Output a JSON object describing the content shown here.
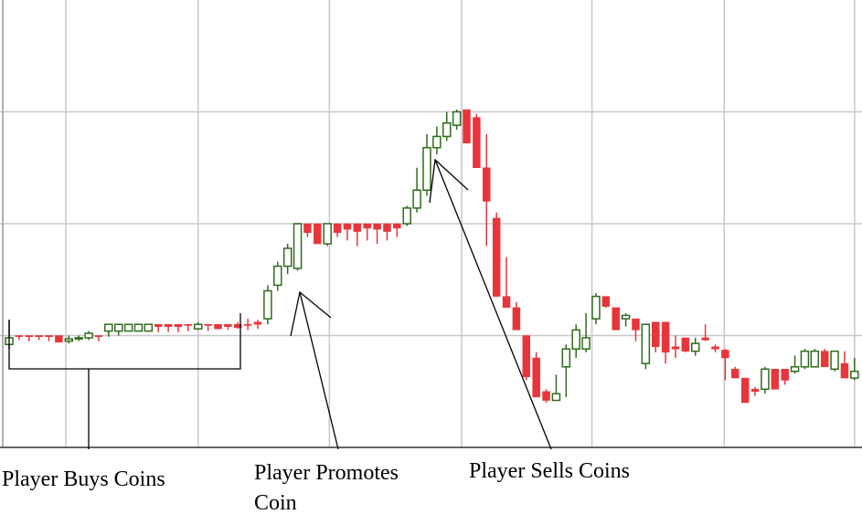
{
  "chart_data": {
    "type": "candlestick",
    "open": [
      0.92,
      1.0,
      1.0,
      1.0,
      1.0,
      1.0,
      0.95,
      0.97,
      0.98,
      1.0,
      1.04,
      1.04,
      1.04,
      1.04,
      1.04,
      1.1,
      1.1,
      1.1,
      1.1,
      1.06,
      1.1,
      1.1,
      1.1,
      1.1,
      1.1,
      1.12,
      1.15,
      1.45,
      1.62,
      1.6,
      2.0,
      2.0,
      1.82,
      2.0,
      2.0,
      2.0,
      2.0,
      2.0,
      2.0,
      2.0,
      2.0,
      2.14,
      2.3,
      2.68,
      2.78,
      2.88,
      3.02,
      2.95,
      2.5,
      2.05,
      1.35,
      1.25,
      1.0,
      0.8,
      0.5,
      0.42,
      0.72,
      0.88,
      0.88,
      1.15,
      1.35,
      1.25,
      1.15,
      1.15,
      0.75,
      1.12,
      1.12,
      0.9,
      0.98,
      0.86,
      0.98,
      0.9,
      0.87,
      0.7,
      0.62,
      0.52,
      0.52,
      0.7,
      0.7,
      0.68,
      0.72,
      0.72,
      0.86,
      0.7,
      0.75,
      0.62
    ],
    "high": [
      1.14,
      1.0,
      1.0,
      1.0,
      1.0,
      1.0,
      1.0,
      1.0,
      1.04,
      1.0,
      1.1,
      1.1,
      1.1,
      1.1,
      1.1,
      1.1,
      1.1,
      1.1,
      1.1,
      1.12,
      1.1,
      1.1,
      1.1,
      1.12,
      1.15,
      1.14,
      1.45,
      1.66,
      1.82,
      2.0,
      2.0,
      2.0,
      2.0,
      2.0,
      2.0,
      2.0,
      2.0,
      2.0,
      2.0,
      2.0,
      2.16,
      2.5,
      2.8,
      2.87,
      3.0,
      3.02,
      3.02,
      2.98,
      2.8,
      2.1,
      1.7,
      1.3,
      1.0,
      0.85,
      0.52,
      0.65,
      0.92,
      1.1,
      1.2,
      1.38,
      1.35,
      1.25,
      1.2,
      1.15,
      1.1,
      1.12,
      1.12,
      1.0,
      0.98,
      0.98,
      1.1,
      0.92,
      0.88,
      0.72,
      0.62,
      0.54,
      0.72,
      0.7,
      0.7,
      0.82,
      0.88,
      0.88,
      0.88,
      0.86,
      0.86,
      0.8
    ],
    "low": [
      0.88,
      0.96,
      0.95,
      0.96,
      0.95,
      0.94,
      0.93,
      0.95,
      0.96,
      0.95,
      0.99,
      1.0,
      1.04,
      1.04,
      1.04,
      1.03,
      1.03,
      1.03,
      1.04,
      1.05,
      1.04,
      1.06,
      1.05,
      1.06,
      1.05,
      1.06,
      1.1,
      1.4,
      1.55,
      1.58,
      1.88,
      1.82,
      1.8,
      1.88,
      1.85,
      1.8,
      1.85,
      1.82,
      1.85,
      1.88,
      1.98,
      2.1,
      2.25,
      2.62,
      2.74,
      2.84,
      2.72,
      2.5,
      1.8,
      1.35,
      1.25,
      1.05,
      0.6,
      0.45,
      0.4,
      0.42,
      0.45,
      0.8,
      0.85,
      1.1,
      1.25,
      1.05,
      1.08,
      0.95,
      0.7,
      0.85,
      0.75,
      0.8,
      0.85,
      0.82,
      0.95,
      0.85,
      0.6,
      0.62,
      0.4,
      0.46,
      0.48,
      0.52,
      0.56,
      0.66,
      0.7,
      0.72,
      0.72,
      0.68,
      0.62,
      0.6
    ],
    "close": [
      0.98,
      0.99,
      0.99,
      0.99,
      0.99,
      0.94,
      0.97,
      0.98,
      1.02,
      0.99,
      1.1,
      1.1,
      1.1,
      1.1,
      1.1,
      1.08,
      1.08,
      1.08,
      1.09,
      1.1,
      1.09,
      1.06,
      1.08,
      1.07,
      1.09,
      1.1,
      1.4,
      1.62,
      1.78,
      2.0,
      1.92,
      1.82,
      2.0,
      1.92,
      1.95,
      1.93,
      1.96,
      1.95,
      1.93,
      1.96,
      2.14,
      2.3,
      2.68,
      2.78,
      2.9,
      3.0,
      2.72,
      2.5,
      2.2,
      1.35,
      1.25,
      1.05,
      0.63,
      0.45,
      0.42,
      0.48,
      0.88,
      1.05,
      0.98,
      1.35,
      1.26,
      1.05,
      1.18,
      1.05,
      1.1,
      0.9,
      0.85,
      0.88,
      0.86,
      0.93,
      0.96,
      0.88,
      0.8,
      0.62,
      0.4,
      0.5,
      0.7,
      0.52,
      0.6,
      0.72,
      0.86,
      0.86,
      0.72,
      0.86,
      0.62,
      0.68
    ],
    "up_color": "#2f6b1c",
    "down_color": "#e8353b",
    "xlim": [
      -0.92,
      85.75
    ],
    "xticks": [
      5.7,
      19,
      32.2,
      45.5,
      58.6,
      71.9,
      85
    ],
    "ylim": [
      0,
      4
    ],
    "yticks": [
      1,
      2,
      3
    ],
    "grid": true,
    "annotations": [
      {
        "lines": [
          "Player Buys Coins"
        ]
      },
      {
        "lines": [
          "Player Promotes",
          "Coin"
        ]
      },
      {
        "lines": [
          "Player Sells Coins"
        ]
      }
    ]
  }
}
